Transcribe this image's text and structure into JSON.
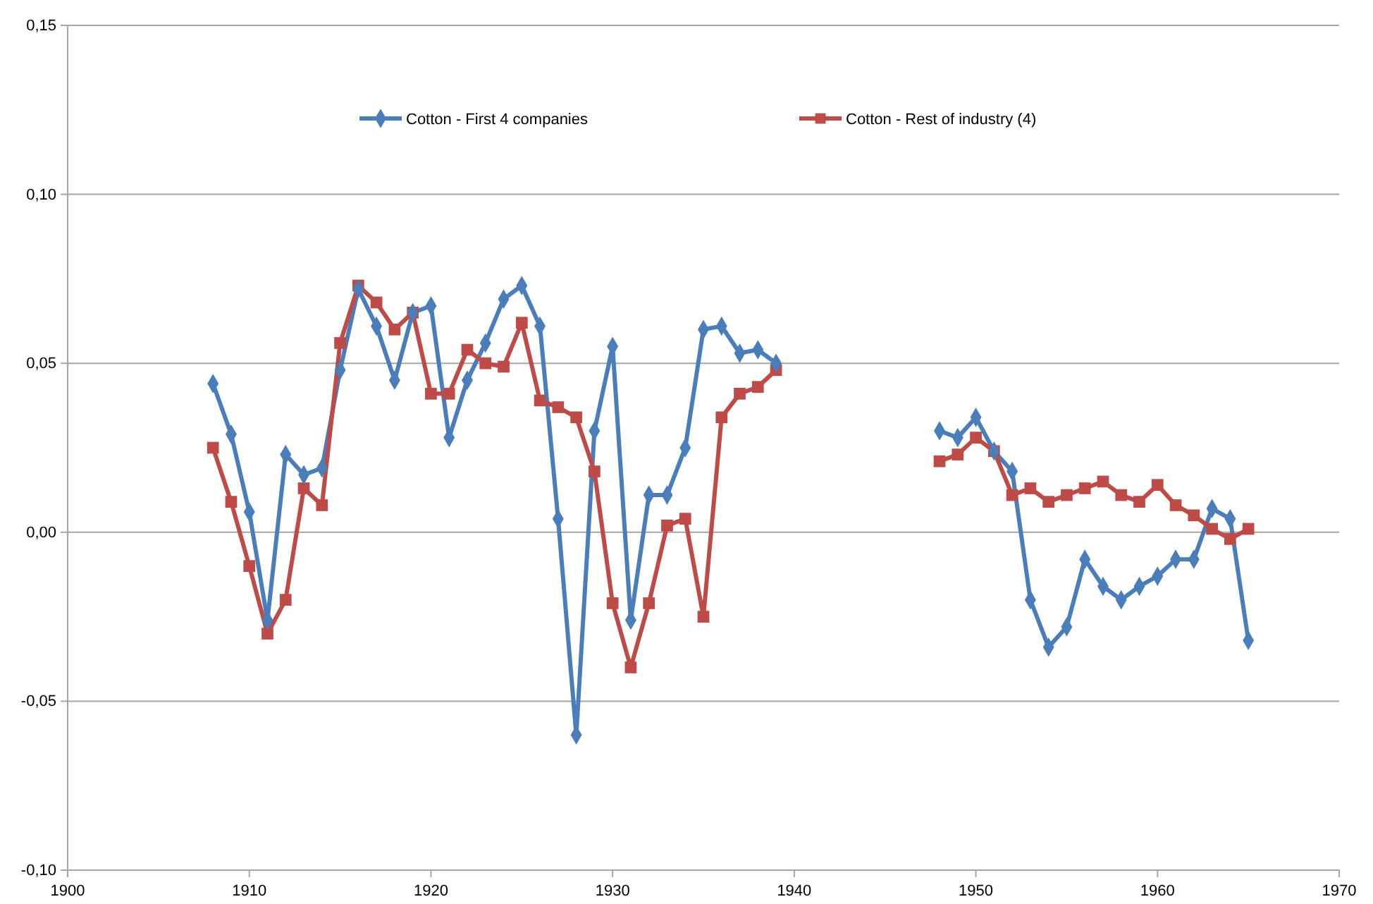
{
  "chart_data": {
    "type": "line",
    "x": [
      1908,
      1909,
      1910,
      1911,
      1912,
      1913,
      1914,
      1915,
      1916,
      1917,
      1918,
      1919,
      1920,
      1921,
      1922,
      1923,
      1924,
      1925,
      1926,
      1927,
      1928,
      1929,
      1930,
      1931,
      1932,
      1933,
      1934,
      1935,
      1936,
      1937,
      1938,
      1939,
      1940,
      1941,
      1942,
      1943,
      1944,
      1945,
      1946,
      1947,
      1948,
      1949,
      1950,
      1951,
      1952,
      1953,
      1954,
      1955,
      1956,
      1957,
      1958,
      1959,
      1960,
      1961,
      1962,
      1963,
      1964,
      1965
    ],
    "series": [
      {
        "name": "Cotton - First 4 companies",
        "color": "#4a7ebb",
        "marker": "diamond",
        "values": [
          0.044,
          0.029,
          0.006,
          -0.026,
          0.023,
          0.017,
          0.019,
          0.048,
          0.072,
          0.061,
          0.045,
          0.065,
          0.067,
          0.028,
          0.045,
          0.056,
          0.069,
          0.073,
          0.061,
          0.004,
          -0.06,
          0.03,
          0.055,
          -0.026,
          0.011,
          0.011,
          0.025,
          0.06,
          0.061,
          0.053,
          0.054,
          0.05,
          null,
          null,
          null,
          null,
          null,
          null,
          null,
          null,
          0.03,
          0.028,
          0.034,
          0.024,
          0.018,
          -0.02,
          -0.034,
          -0.028,
          -0.008,
          -0.016,
          -0.02,
          -0.016,
          -0.013,
          -0.008,
          -0.008,
          0.007,
          0.004,
          -0.032
        ]
      },
      {
        "name": "Cotton - Rest of industry (4)",
        "color": "#be4b48",
        "marker": "square",
        "values": [
          0.025,
          0.009,
          -0.01,
          -0.03,
          -0.02,
          0.013,
          0.008,
          0.056,
          0.073,
          0.068,
          0.06,
          0.065,
          0.041,
          0.041,
          0.054,
          0.05,
          0.049,
          0.062,
          0.039,
          0.037,
          0.034,
          0.018,
          -0.021,
          -0.04,
          -0.021,
          0.002,
          0.004,
          -0.025,
          0.034,
          0.041,
          0.043,
          0.048,
          null,
          null,
          null,
          null,
          null,
          null,
          null,
          null,
          0.021,
          0.023,
          0.028,
          0.024,
          0.011,
          0.013,
          0.009,
          0.011,
          0.013,
          0.015,
          0.011,
          0.009,
          0.014,
          0.008,
          0.005,
          0.001,
          -0.002,
          0.001
        ]
      }
    ],
    "xlim": [
      1900,
      1970
    ],
    "xticks": [
      1900,
      1910,
      1920,
      1930,
      1940,
      1950,
      1960,
      1970
    ],
    "ylim": [
      -0.1,
      0.15
    ],
    "yticks": [
      {
        "value": -0.1,
        "label": "-0,10"
      },
      {
        "value": -0.05,
        "label": "-0,05"
      },
      {
        "value": 0,
        "label": "0,00"
      },
      {
        "value": 0.05,
        "label": "0,05"
      },
      {
        "value": 0.1,
        "label": "0,10"
      },
      {
        "value": 0.15,
        "label": "0,15"
      }
    ],
    "grid": "y",
    "legend": "top"
  }
}
